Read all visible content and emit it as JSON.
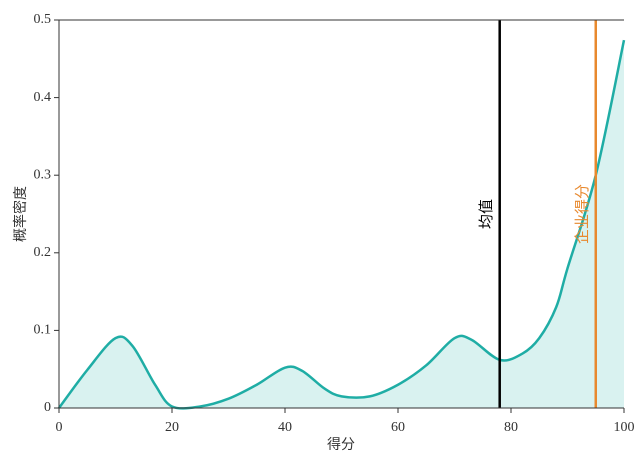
{
  "chart_data": {
    "type": "density",
    "xlabel": "得分",
    "ylabel": "概率密度",
    "x": [
      0,
      5,
      10,
      13,
      17,
      20,
      25,
      30,
      35,
      40,
      43,
      47,
      50,
      55,
      60,
      65,
      70,
      73,
      78,
      82,
      85,
      88,
      90,
      95,
      100
    ],
    "series": [
      {
        "color": "#1fada5",
        "fill": "#d9f2f0",
        "values": [
          0,
          0.049,
          0.09,
          0.08,
          0.03,
          0.002,
          0.002,
          0.012,
          0.03,
          0.052,
          0.048,
          0.025,
          0.015,
          0.015,
          0.03,
          0.055,
          0.09,
          0.088,
          0.062,
          0.07,
          0.09,
          0.13,
          0.18,
          0.3,
          0.474
        ]
      }
    ],
    "vlines": [
      {
        "x": 78,
        "label": "均值",
        "color": "#000000"
      },
      {
        "x": 95,
        "label": "企业得分",
        "color": "#e8892e"
      }
    ],
    "xlim": [
      0,
      100
    ],
    "xticks": [
      0,
      20,
      40,
      60,
      80,
      100
    ],
    "ylim": [
      0,
      0.5
    ],
    "yticks": [
      0,
      0.1,
      0.2,
      0.3,
      0.4,
      0.5
    ]
  }
}
